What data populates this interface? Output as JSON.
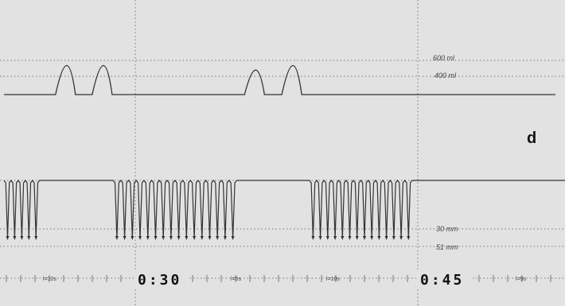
{
  "chart_data": {
    "type": "line",
    "panel_label": "d",
    "time_labels": [
      "0:30",
      "0:45"
    ],
    "volume_reference_labels": [
      "600 ml",
      "400 ml"
    ],
    "pressure_reference_labels": [
      "30 mm",
      "51 mm"
    ],
    "tick_labels": [
      "l=10s",
      "l=5s",
      "l=10s",
      "l=5s"
    ],
    "series": [
      {
        "name": "",
        "trace": "volume",
        "events": [
          {
            "time": 0.236,
            "peak_ml": 520
          },
          {
            "time": 0.366,
            "peak_ml": 520
          },
          {
            "time": 0.905,
            "peak_ml": 440
          },
          {
            "time": 1.037,
            "peak_ml": 520
          }
        ]
      },
      {
        "name": "",
        "trace": "pressure",
        "bursts": [
          {
            "start": 0.0,
            "end": 0.14,
            "cycles": 5
          },
          {
            "start": 0.386,
            "end": 0.838,
            "cycles": 16
          },
          {
            "start": 1.081,
            "end": 1.459,
            "cycles": 14
          }
        ]
      }
    ],
    "grid": "dotted",
    "colors": {
      "background": "#e2e2e2",
      "trace": "#333333",
      "grid": "#777777",
      "text": "#111111"
    }
  }
}
